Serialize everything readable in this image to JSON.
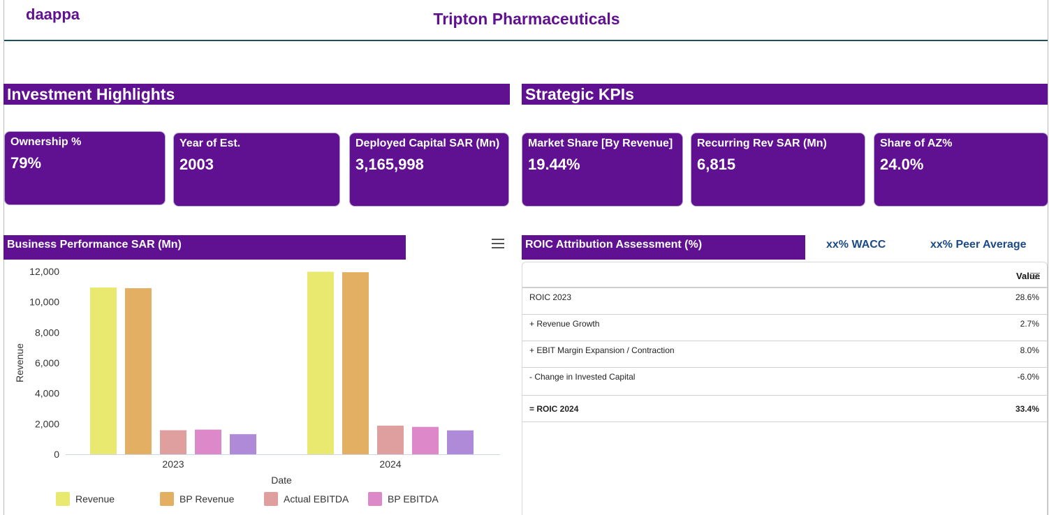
{
  "header": {
    "brand": "daappa",
    "title": "Tripton Pharmaceuticals"
  },
  "sections": {
    "investment": "Investment Highlights",
    "strategic": "Strategic KPIs"
  },
  "investment_kpis": [
    {
      "label": "Ownership %",
      "value": "79%"
    },
    {
      "label": "Year of Est.",
      "value": "2003"
    },
    {
      "label": "Deployed Capital SAR (Mn)",
      "value": "3,165,998"
    }
  ],
  "strategic_kpis": [
    {
      "label": "Market Share [By Revenue]",
      "value": "19.44%"
    },
    {
      "label": "Recurring Rev SAR (Mn)",
      "value": "6,815"
    },
    {
      "label": "Share of AZ%",
      "value": "24.0%"
    }
  ],
  "business_panel": {
    "title": "Business Performance SAR (Mn)"
  },
  "roic_panel": {
    "title": "ROIC Attribution Assessment (%)",
    "wacc": "xx% WACC",
    "peer": "xx% Peer Average",
    "value_header": "Value",
    "rows": [
      {
        "label": "ROIC 2023",
        "value": "28.6%"
      },
      {
        "label": "+ Revenue Growth",
        "value": "2.7%"
      },
      {
        "label": "+ EBIT Margin Expansion / Contraction",
        "value": "8.0%"
      },
      {
        "label": "- Change in Invested Capital",
        "value": "-6.0%"
      },
      {
        "label": "= ROIC 2024",
        "value": "33.4%"
      }
    ]
  },
  "chart_data": {
    "type": "bar",
    "categories": [
      "2023",
      "2024"
    ],
    "xlabel": "Date",
    "ylabel": "Revenue",
    "ylim": [
      0,
      12000
    ],
    "yticks": [
      "0",
      "2,000",
      "4,000",
      "6,000",
      "8,000",
      "10,000",
      "12,000"
    ],
    "grid": false,
    "legend_position": "bottom",
    "series": [
      {
        "name": "Revenue",
        "values": [
          10950,
          11980
        ],
        "color": "#eae96f"
      },
      {
        "name": "BP Revenue",
        "values": [
          10900,
          11950
        ],
        "color": "#e3af62"
      },
      {
        "name": "Actual EBITDA",
        "values": [
          1580,
          1880
        ],
        "color": "#e09f9f"
      },
      {
        "name": "BP EBITDA",
        "values": [
          1620,
          1800
        ],
        "color": "#dd88c8"
      },
      {
        "name": "",
        "values": [
          1320,
          1570
        ],
        "color": "#ae8ad8"
      }
    ]
  }
}
